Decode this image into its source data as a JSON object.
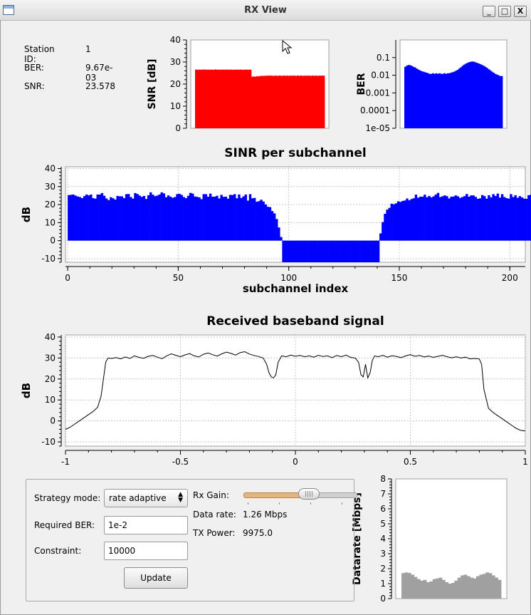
{
  "window": {
    "title": "RX View",
    "buttons": [
      "_",
      "□",
      "X"
    ]
  },
  "station": {
    "id_label": "Station ID:",
    "id_value": "1",
    "ber_label": "BER:",
    "ber_value": "9.67e-03",
    "snr_label": "SNR:",
    "snr_value": "23.578"
  },
  "controls": {
    "strategy_label": "Strategy mode:",
    "strategy_value": "rate adaptive",
    "ber_label": "Required BER:",
    "ber_value": "1e-2",
    "constraint_label": "Constraint:",
    "constraint_value": "10000",
    "update_label": "Update",
    "rxgain_label": "Rx Gain:",
    "rxgain_level": 0.58,
    "datarate_label": "Data rate:",
    "datarate_value": "1.26 Mbps",
    "txpower_label": "TX Power:",
    "txpower_value": "9975.0"
  },
  "colors": {
    "red": "#ff0000",
    "blue": "#0000ff",
    "gray": "#a0a0a0",
    "black": "#000000"
  },
  "chart_data": [
    {
      "id": "snr",
      "type": "area",
      "title": "",
      "xlabel": "",
      "ylabel": "SNR [dB]",
      "ylim": [
        0,
        40
      ],
      "yticks": [
        "0",
        "10",
        "20",
        "30",
        "40"
      ],
      "color": "#ff0000",
      "values": [
        26.5,
        26.5,
        26.6,
        26.4,
        26.5,
        26.6,
        26.5,
        26.4,
        26.6,
        26.5,
        26.5,
        26.7,
        26.5,
        26.4,
        26.6,
        26.5,
        26.5,
        26.6,
        26.4,
        26.5,
        26.6,
        26.5,
        26.5,
        26.4,
        26.6,
        26.5,
        26.7,
        26.5,
        26.5,
        26.6,
        26.5,
        26.4,
        26.6,
        26.5,
        26.5,
        26.6,
        26.5,
        26.4,
        26.6,
        26.6,
        26.5,
        26.5,
        26.5,
        26.6,
        26.4,
        26.5,
        26.6,
        26.5,
        26.5,
        26.4,
        26.5,
        26.6,
        26.5,
        26.5,
        26.5,
        26.6,
        26.4,
        26.5,
        26.6,
        26.5,
        26.5,
        26.4,
        26.5,
        26.6,
        26.5,
        26.5,
        26.6,
        26.4,
        26.5,
        26.6,
        26.5,
        26.5,
        23.3,
        23.4,
        23.3,
        23.5,
        23.4,
        23.2,
        23.5,
        23.6,
        23.5,
        23.4,
        23.6,
        23.7,
        23.5,
        23.8,
        23.7,
        23.6,
        23.8,
        23.7,
        23.6,
        23.9,
        23.8,
        23.7,
        23.9,
        23.8,
        23.7,
        23.9,
        23.8,
        23.6,
        23.8,
        23.7,
        23.8,
        23.9,
        23.6,
        23.8,
        23.7,
        23.8,
        23.9,
        23.7,
        23.8,
        23.6,
        23.8,
        23.9,
        23.7,
        23.8,
        23.7,
        23.9,
        23.8,
        23.7,
        23.8,
        23.6,
        23.9,
        23.8,
        23.7,
        23.8,
        23.9,
        23.7,
        23.8,
        23.6,
        23.8,
        23.9,
        23.7,
        23.8,
        23.7,
        23.9,
        23.8,
        23.7,
        23.8,
        23.6,
        23.9,
        23.8,
        23.7,
        23.8,
        23.8,
        23.9,
        23.7,
        23.8,
        23.6,
        23.8,
        23.9,
        23.7,
        23.8,
        23.7,
        23.9,
        23.8,
        23.7,
        23.8,
        23.6,
        23.9,
        23.8,
        23.7,
        23.8,
        23.9,
        23.7,
        23.8
      ]
    },
    {
      "id": "ber",
      "type": "area",
      "title": "",
      "xlabel": "",
      "ylabel": "BER",
      "yscale": "log",
      "ylim": [
        1e-05,
        1
      ],
      "yticks": [
        "1e-05",
        "0.0001",
        "0.001",
        "0.01",
        "0.1"
      ],
      "color": "#0000ff",
      "values": [
        0.03,
        0.035,
        0.038,
        0.037,
        0.034,
        0.03,
        0.028,
        0.024,
        0.021,
        0.019,
        0.017,
        0.016,
        0.015,
        0.014,
        0.013,
        0.012,
        0.012,
        0.013,
        0.012,
        0.013,
        0.012,
        0.013,
        0.012,
        0.012,
        0.013,
        0.012,
        0.013,
        0.013,
        0.014,
        0.015,
        0.016,
        0.018,
        0.02,
        0.024,
        0.028,
        0.034,
        0.04,
        0.045,
        0.05,
        0.055,
        0.058,
        0.06,
        0.058,
        0.054,
        0.05,
        0.046,
        0.042,
        0.038,
        0.034,
        0.03,
        0.026,
        0.022,
        0.019,
        0.016,
        0.014,
        0.012,
        0.011,
        0.01,
        0.009,
        0.009
      ]
    },
    {
      "id": "sinr",
      "type": "bar",
      "title": "SINR per subchannel",
      "xlabel": "subchannel index",
      "ylabel": "dB",
      "xlim": [
        -1,
        207
      ],
      "ylim": [
        -12,
        41
      ],
      "xticks": [
        "0",
        "50",
        "100",
        "150",
        "200"
      ],
      "yticks": [
        "-10",
        "0",
        "10",
        "20",
        "30",
        "40"
      ],
      "color": "#0000ff",
      "values": [
        25.3,
        25.4,
        25.6,
        25.0,
        24.5,
        24.2,
        23.6,
        24.7,
        25.6,
        25.1,
        25.6,
        23.6,
        23.3,
        25.6,
        25.6,
        26.4,
        24.9,
        23.4,
        22.5,
        24.1,
        23.5,
        22.8,
        24.8,
        24.6,
        24.6,
        23.6,
        25.8,
        25.9,
        24.2,
        23.3,
        26.4,
        25.9,
        25.0,
        24.3,
        24.8,
        23.1,
        25.2,
        26.8,
        25.5,
        24.7,
        25.0,
        25.6,
        26.8,
        26.2,
        24.1,
        25.1,
        24.4,
        23.8,
        24.2,
        25.8,
        26.0,
        25.4,
        24.2,
        23.6,
        24.9,
        26.5,
        26.1,
        24.5,
        24.3,
        24.0,
        23.0,
        25.8,
        25.8,
        24.4,
        26.1,
        24.4,
        24.4,
        24.9,
        23.4,
        25.4,
        24.3,
        24.4,
        23.3,
        25.4,
        25.3,
        25.8,
        23.5,
        25.6,
        23.7,
        24.6,
        25.6,
        22.2,
        25.8,
        23.5,
        23.7,
        21.6,
        21.9,
        22.7,
        21.7,
        20.1,
        18.8,
        18.6,
        16.4,
        15.1,
        12.0,
        7.3,
        2.0,
        -12.0,
        -12.0,
        -12.0,
        -12.0,
        -12.0,
        -12.0,
        -12.0,
        -12.0,
        -12.0,
        -12.0,
        -12.0,
        -12.0,
        -12.0,
        -12.0,
        -12.0,
        -12.0,
        -12.0,
        -12.0,
        -12.0,
        -12.0,
        -12.0,
        -12.0,
        -12.0,
        -12.0,
        -12.0,
        -12.0,
        -12.0,
        -12.0,
        -12.0,
        -12.0,
        -12.0,
        -12.0,
        -12.0,
        -12.0,
        -12.0,
        -12.0,
        -12.0,
        -12.0,
        -12.0,
        -12.0,
        -12.0,
        -12.0,
        -12.0,
        -12.0,
        4.0,
        10.3,
        14.9,
        17.2,
        18.2,
        20.5,
        20.2,
        20.7,
        21.8,
        21.5,
        22.0,
        22.3,
        23.4,
        22.4,
        23.1,
        23.5,
        25.5,
        23.8,
        24.4,
        24.4,
        25.5,
        24.1,
        24.8,
        24.0,
        24.6,
        25.6,
        26.5,
        24.2,
        24.6,
        25.1,
        24.7,
        23.4,
        24.4,
        24.5,
        25.1,
        24.6,
        23.7,
        24.2,
        24.7,
        25.9,
        24.4,
        25.1,
        25.1,
        24.3,
        23.2,
        23.5,
        25.3,
        24.7,
        23.3,
        25.2,
        24.0,
        25.8,
        24.8,
        26.1,
        23.9,
        25.8,
        24.2,
        23.6,
        23.3,
        25.8,
        24.2,
        25.2,
        23.8,
        24.7,
        24.0,
        23.3,
        23.2,
        25.2,
        25.5,
        25.8
      ]
    },
    {
      "id": "baseband",
      "type": "line",
      "title": "Received baseband signal",
      "xlabel": "",
      "ylabel": "dB",
      "xlim": [
        -1,
        1
      ],
      "ylim": [
        -12,
        41
      ],
      "xticks": [
        "-1",
        "-0.5",
        "0",
        "0.5",
        "1"
      ],
      "yticks": [
        "-10",
        "0",
        "10",
        "20",
        "30",
        "40"
      ],
      "color": "#000000",
      "x": [
        -1.0,
        -0.98,
        -0.96,
        -0.94,
        -0.92,
        -0.9,
        -0.88,
        -0.86,
        -0.845,
        -0.835,
        -0.825,
        -0.815,
        -0.8,
        -0.78,
        -0.76,
        -0.74,
        -0.72,
        -0.7,
        -0.68,
        -0.66,
        -0.64,
        -0.62,
        -0.6,
        -0.58,
        -0.56,
        -0.54,
        -0.52,
        -0.5,
        -0.48,
        -0.46,
        -0.44,
        -0.42,
        -0.4,
        -0.38,
        -0.36,
        -0.34,
        -0.32,
        -0.3,
        -0.28,
        -0.26,
        -0.24,
        -0.22,
        -0.2,
        -0.18,
        -0.16,
        -0.14,
        -0.125,
        -0.115,
        -0.105,
        -0.095,
        -0.085,
        -0.075,
        -0.06,
        -0.04,
        -0.02,
        0.0,
        0.02,
        0.04,
        0.06,
        0.08,
        0.1,
        0.12,
        0.14,
        0.16,
        0.18,
        0.2,
        0.22,
        0.24,
        0.26,
        0.275,
        0.285,
        0.295,
        0.305,
        0.315,
        0.325,
        0.335,
        0.345,
        0.36,
        0.38,
        0.4,
        0.42,
        0.44,
        0.46,
        0.48,
        0.5,
        0.52,
        0.54,
        0.56,
        0.58,
        0.6,
        0.62,
        0.64,
        0.66,
        0.68,
        0.7,
        0.72,
        0.74,
        0.76,
        0.78,
        0.8,
        0.81,
        0.82,
        0.84,
        0.86,
        0.88,
        0.9,
        0.92,
        0.94,
        0.96,
        0.98,
        1.0
      ],
      "y": [
        -4.0,
        -3.0,
        -1.5,
        0.0,
        1.5,
        3.0,
        4.5,
        6.5,
        12.0,
        20.0,
        28.0,
        30.0,
        29.8,
        30.2,
        29.6,
        30.5,
        29.8,
        31.0,
        30.3,
        29.9,
        30.8,
        31.2,
        30.4,
        29.7,
        31.0,
        32.0,
        31.3,
        30.6,
        31.5,
        32.1,
        31.0,
        30.5,
        31.8,
        32.4,
        31.6,
        30.9,
        32.0,
        32.8,
        32.2,
        31.4,
        32.6,
        33.0,
        31.9,
        31.2,
        30.7,
        30.0,
        27.0,
        23.0,
        21.0,
        20.5,
        22.0,
        28.0,
        31.0,
        30.6,
        31.4,
        30.8,
        31.2,
        30.6,
        31.0,
        30.4,
        31.3,
        30.7,
        31.0,
        30.2,
        31.2,
        30.6,
        31.4,
        30.3,
        30.0,
        28.0,
        22.0,
        21.0,
        27.0,
        20.5,
        23.0,
        29.0,
        31.0,
        30.6,
        31.3,
        30.4,
        31.1,
        30.7,
        30.2,
        31.0,
        31.6,
        30.8,
        31.2,
        30.5,
        30.9,
        30.3,
        30.8,
        31.3,
        30.6,
        30.1,
        30.6,
        30.0,
        30.4,
        29.6,
        29.8,
        29.5,
        27.0,
        15.0,
        6.0,
        4.0,
        2.5,
        1.0,
        -0.5,
        -2.0,
        -3.5,
        -4.5,
        -4.8
      ]
    },
    {
      "id": "datarate",
      "type": "area",
      "title": "",
      "xlabel": "",
      "ylabel": "Datarate [Mbps]",
      "ylim": [
        0,
        8
      ],
      "yticks": [
        "0",
        "1",
        "2",
        "3",
        "4",
        "5",
        "6",
        "7",
        "8"
      ],
      "color": "#a0a0a0",
      "values": [
        1.7,
        1.75,
        1.72,
        1.6,
        1.45,
        1.3,
        1.2,
        1.25,
        1.1,
        1.15,
        1.3,
        1.35,
        1.4,
        1.25,
        1.1,
        1.0,
        1.05,
        1.2,
        1.4,
        1.55,
        1.6,
        1.5,
        1.4,
        1.35,
        1.5,
        1.6,
        1.65,
        1.75,
        1.7,
        1.55,
        1.4,
        1.25
      ]
    }
  ]
}
